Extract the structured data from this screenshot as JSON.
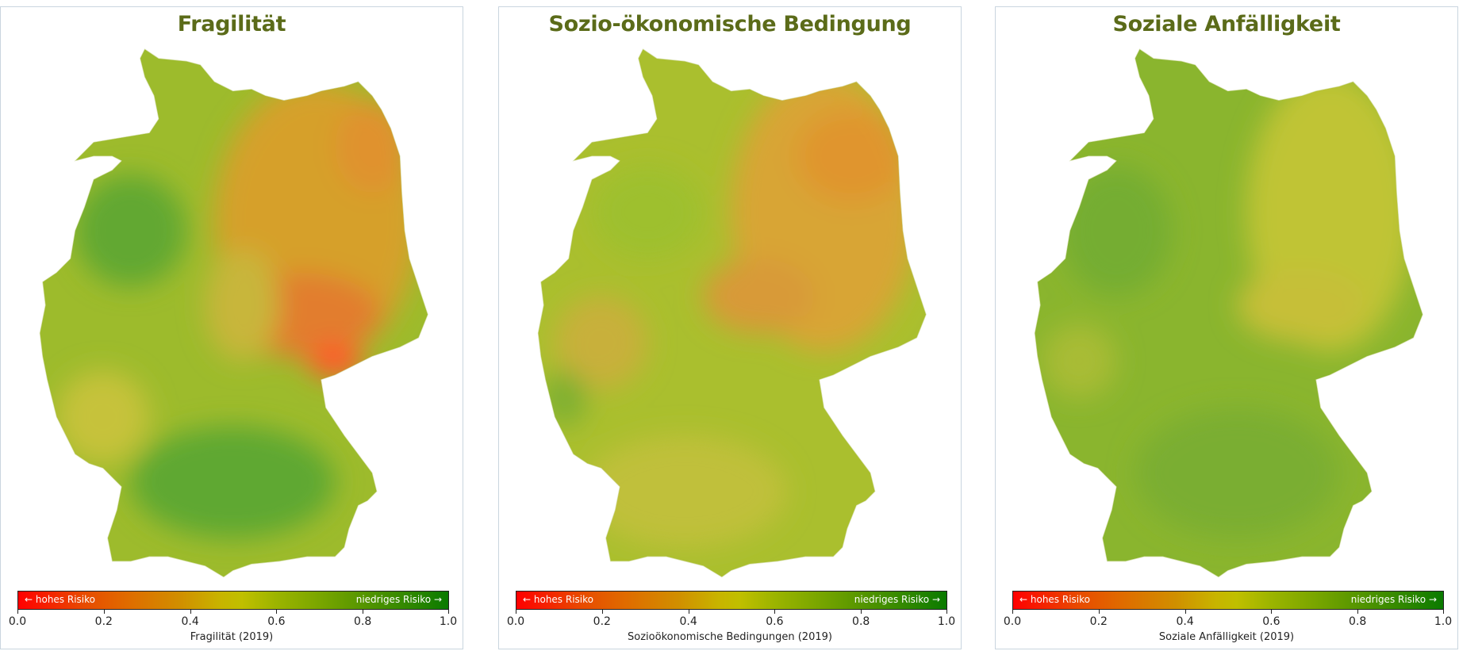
{
  "panels": [
    {
      "title": "Fragilität",
      "colorbar_label": "Fragilität (2019)"
    },
    {
      "title": "Sozio-ökonomische Bedingung",
      "colorbar_label": "Sozioökonomische Bedingungen (2019)"
    },
    {
      "title": "Soziale Anfälligkeit",
      "colorbar_label": "Soziale Anfälligkeit (2019)"
    }
  ],
  "colorbar": {
    "left_note": "← hohes Risiko",
    "right_note": "niedriges Risiko →",
    "ticks": [
      "0.0",
      "0.2",
      "0.4",
      "0.6",
      "0.8",
      "1.0"
    ],
    "range": [
      0,
      1
    ],
    "colors": {
      "low": "#ff0000",
      "mid": "#c0bf00",
      "high": "#0a7a00"
    }
  },
  "title_color": "#5b6b19"
}
